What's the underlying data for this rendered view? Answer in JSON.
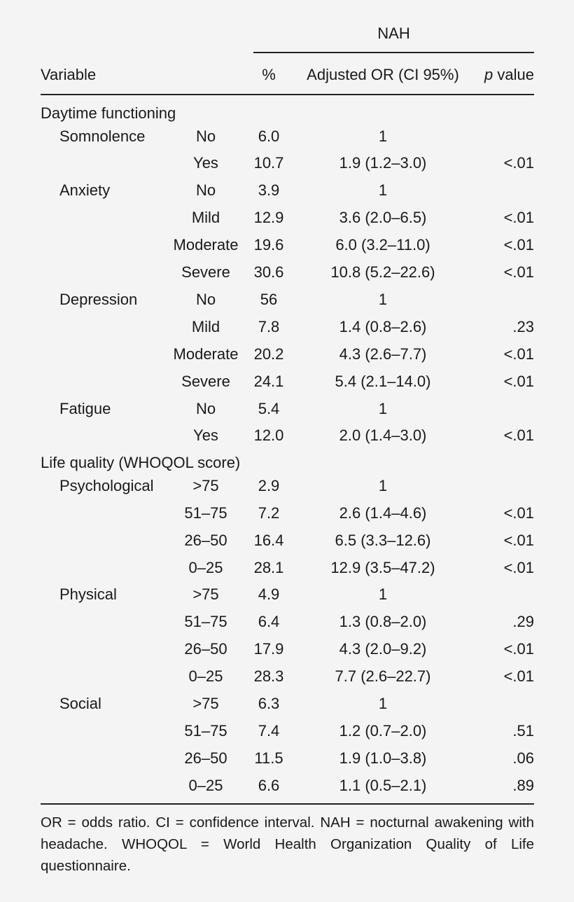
{
  "header": {
    "group": "NAH",
    "variable": "Variable",
    "percent": "%",
    "or": "Adjusted OR (CI 95%)",
    "p_italic": "p",
    "p_rest": " value"
  },
  "sections": [
    {
      "title": "Daytime functioning",
      "groups": [
        {
          "name": "Somnolence",
          "rows": [
            {
              "level": "No",
              "pct": "6.0",
              "or": "1",
              "p": ""
            },
            {
              "level": "Yes",
              "pct": "10.7",
              "or": "1.9 (1.2–3.0)",
              "p": "<.01"
            }
          ]
        },
        {
          "name": "Anxiety",
          "rows": [
            {
              "level": "No",
              "pct": "3.9",
              "or": "1",
              "p": ""
            },
            {
              "level": "Mild",
              "pct": "12.9",
              "or": "3.6 (2.0–6.5)",
              "p": "<.01"
            },
            {
              "level": "Moderate",
              "pct": "19.6",
              "or": "6.0 (3.2–11.0)",
              "p": "<.01"
            },
            {
              "level": "Severe",
              "pct": "30.6",
              "or": "10.8 (5.2–22.6)",
              "p": "<.01"
            }
          ]
        },
        {
          "name": "Depression",
          "rows": [
            {
              "level": "No",
              "pct": "56",
              "or": "1",
              "p": ""
            },
            {
              "level": "Mild",
              "pct": "7.8",
              "or": "1.4 (0.8–2.6)",
              "p": ".23"
            },
            {
              "level": "Moderate",
              "pct": "20.2",
              "or": "4.3 (2.6–7.7)",
              "p": "<.01"
            },
            {
              "level": "Severe",
              "pct": "24.1",
              "or": "5.4 (2.1–14.0)",
              "p": "<.01"
            }
          ]
        },
        {
          "name": "Fatigue",
          "rows": [
            {
              "level": "No",
              "pct": "5.4",
              "or": "1",
              "p": ""
            },
            {
              "level": "Yes",
              "pct": "12.0",
              "or": "2.0 (1.4–3.0)",
              "p": "<.01"
            }
          ]
        }
      ]
    },
    {
      "title": "Life quality (WHOQOL score)",
      "groups": [
        {
          "name": "Psychological",
          "rows": [
            {
              "level": ">75",
              "pct": "2.9",
              "or": "1",
              "p": ""
            },
            {
              "level": "51–75",
              "pct": "7.2",
              "or": "2.6 (1.4–4.6)",
              "p": "<.01"
            },
            {
              "level": "26–50",
              "pct": "16.4",
              "or": "6.5 (3.3–12.6)",
              "p": "<.01"
            },
            {
              "level": "0–25",
              "pct": "28.1",
              "or": "12.9 (3.5–47.2)",
              "p": "<.01"
            }
          ]
        },
        {
          "name": "Physical",
          "rows": [
            {
              "level": ">75",
              "pct": "4.9",
              "or": "1",
              "p": ""
            },
            {
              "level": "51–75",
              "pct": "6.4",
              "or": "1.3 (0.8–2.0)",
              "p": ".29"
            },
            {
              "level": "26–50",
              "pct": "17.9",
              "or": "4.3 (2.0–9.2)",
              "p": "<.01"
            },
            {
              "level": "0–25",
              "pct": "28.3",
              "or": "7.7 (2.6–22.7)",
              "p": "<.01"
            }
          ]
        },
        {
          "name": "Social",
          "rows": [
            {
              "level": ">75",
              "pct": "6.3",
              "or": "1",
              "p": ""
            },
            {
              "level": "51–75",
              "pct": "7.4",
              "or": "1.2 (0.7–2.0)",
              "p": ".51"
            },
            {
              "level": "26–50",
              "pct": "11.5",
              "or": "1.9 (1.0–3.8)",
              "p": ".06"
            },
            {
              "level": "0–25",
              "pct": "6.6",
              "or": "1.1 (0.5–2.1)",
              "p": ".89"
            }
          ]
        }
      ]
    }
  ],
  "footnote": "OR = odds ratio. CI = confidence interval. NAH = nocturnal awakening with headache. WHOQOL = World Health Organization Quality of Life questionnaire."
}
